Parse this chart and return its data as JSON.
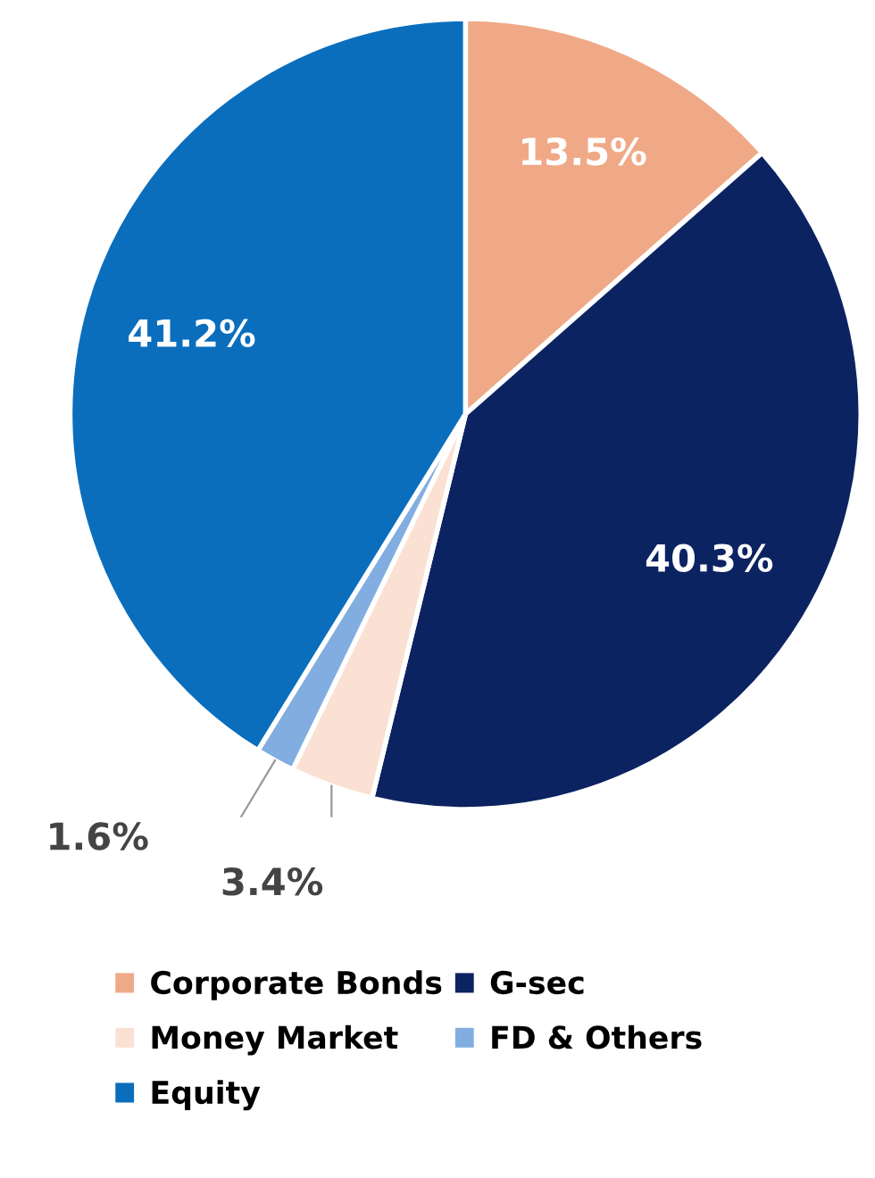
{
  "chart_data": {
    "type": "pie",
    "categories": [
      "Corporate Bonds",
      "G-sec",
      "Money Market",
      "FD & Others",
      "Equity"
    ],
    "values": [
      13.5,
      40.3,
      3.4,
      1.6,
      41.2
    ],
    "value_labels": [
      "13.5%",
      "40.3%",
      "3.4%",
      "1.6%",
      "41.2%"
    ],
    "colors": [
      "#f0a987",
      "#0c2361",
      "#fbe0d4",
      "#82ade0",
      "#0a6ebd"
    ],
    "legend": "bottom"
  }
}
